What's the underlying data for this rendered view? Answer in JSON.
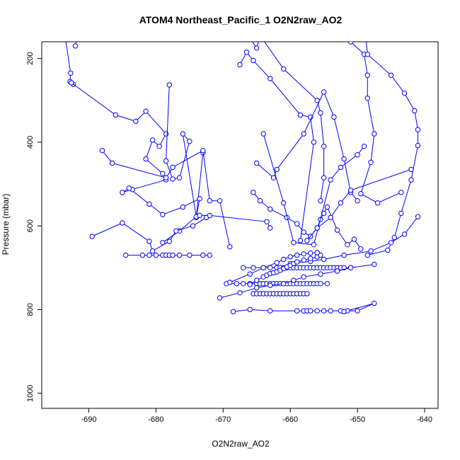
{
  "chart_data": {
    "type": "line",
    "title": "ATOM4 Northeast_Pacific_1 O2N2raw_AO2",
    "xlabel": "O2N2raw_AO2",
    "ylabel": "Pressure (mbar)",
    "xlim": [
      -697,
      -638
    ],
    "ylim": [
      1036,
      160
    ],
    "y_inverted": true,
    "grid": false,
    "legend": "none",
    "markers": "open-circle",
    "x_ticks": [
      -690,
      -680,
      -670,
      -660,
      -650,
      -640
    ],
    "y_ticks": [
      200,
      400,
      600,
      800,
      1000
    ],
    "series_color": "#0000ff",
    "series": [
      {
        "x": [
          -693.5,
          -692.7,
          -692.8,
          -692.3
        ],
        "y": [
          150,
          235,
          255,
          262
        ]
      },
      {
        "x": [
          -692,
          -691.5
        ],
        "y": [
          170,
          130
        ]
      },
      {
        "x": [
          -692.6,
          -686.0,
          -683.0,
          -681.5,
          -678.5,
          -679.5,
          -680.5,
          -681.5,
          -679.0,
          -678.5,
          -683.5,
          -685.0,
          -684.0,
          -681.0,
          -679.0,
          -676.0,
          -673.5,
          -674.0,
          -673.0
        ],
        "y": [
          258,
          335,
          350,
          326,
          380,
          410,
          395,
          440,
          475,
          490,
          513,
          520,
          510,
          548,
          573,
          555,
          535,
          580,
          425
        ]
      },
      {
        "x": [
          -678.0,
          -678.5,
          -677.5,
          -676.5,
          -675.0,
          -676.0,
          -674.0,
          -676.5,
          -679.0
        ],
        "y": [
          263,
          445,
          488,
          485,
          398,
          380,
          578,
          612,
          640
        ]
      },
      {
        "x": [
          -688.0,
          -686.5,
          -678.5,
          -677.5,
          -673.0,
          -672.0,
          -670.5,
          -669.0
        ],
        "y": [
          420,
          450,
          485,
          460,
          420,
          540,
          540,
          650
        ]
      },
      {
        "x": [
          -689.5,
          -685.0,
          -681.0,
          -680.5,
          -678.0,
          -677.0,
          -674.5,
          -672.5
        ],
        "y": [
          625,
          593,
          637,
          660,
          637,
          612,
          600,
          580
        ]
      },
      {
        "x": [
          -684.5,
          -682.0,
          -681.0,
          -680.0,
          -679.0,
          -678.5,
          -678.0,
          -677.5,
          -676.5,
          -675.0,
          -673.0,
          -672.0
        ],
        "y": [
          670,
          670,
          670,
          670,
          670,
          670,
          670,
          670,
          670,
          670,
          670,
          670
        ]
      },
      {
        "x": [
          -673.5,
          -672.0,
          -663.5,
          -663.0
        ],
        "y": [
          575,
          575,
          590,
          605
        ]
      },
      {
        "x": [
          -667.5,
          -666.5,
          -665.5,
          -663.0,
          -658.5,
          -657.0,
          -656.5,
          -658.5
        ],
        "y": [
          215,
          185,
          205,
          248,
          335,
          340,
          400,
          635
        ]
      },
      {
        "x": [
          -666.5,
          -665.0,
          -664.5,
          -661.0,
          -656.0,
          -655.5,
          -655.0,
          -655.0,
          -655.5
        ],
        "y": [
          140,
          175,
          145,
          225,
          300,
          330,
          410,
          485,
          540
        ]
      },
      {
        "x": [
          -665.0,
          -662.5,
          -662.0,
          -658.0,
          -655.0,
          -653.5,
          -652.0,
          -651.0,
          -650.0
        ],
        "y": [
          450,
          485,
          465,
          380,
          280,
          340,
          440,
          520,
          540
        ]
      },
      {
        "x": [
          -665.5,
          -664.5,
          -663.0,
          -660.5,
          -659.0,
          -658.0,
          -657.0,
          -656.0,
          -655.5,
          -655.0,
          -654.5,
          -653.0,
          -651.5,
          -650.5,
          -649.5
        ],
        "y": [
          520,
          540,
          560,
          580,
          595,
          615,
          625,
          605,
          585,
          570,
          555,
          610,
          645,
          632,
          655
        ]
      },
      {
        "x": [
          -664.0,
          -661.0,
          -659.5,
          -656.5,
          -654.0,
          -652.5,
          -650.0,
          -649.0
        ],
        "y": [
          380,
          545,
          640,
          645,
          490,
          460,
          430,
          410
        ]
      },
      {
        "x": [
          -651.0,
          -649.0,
          -648.5,
          -648.5,
          -647.5,
          -648.0,
          -649.5,
          -647.0,
          -643.5
        ],
        "y": [
          160,
          190,
          240,
          295,
          380,
          448,
          523,
          545,
          520
        ]
      },
      {
        "x": [
          -649.0,
          -648.5,
          -645.0,
          -643.0,
          -641.5,
          -641.0,
          -641.0,
          -642.0,
          -643.5,
          -644.5,
          -645.5,
          -648.5
        ],
        "y": [
          110,
          190,
          240,
          283,
          325,
          370,
          408,
          490,
          570,
          628,
          658,
          670
        ]
      },
      {
        "x": [
          -642.0,
          -651.0,
          -652.5,
          -654.0,
          -656.0,
          -657.5
        ],
        "y": [
          465,
          515,
          545,
          580,
          605,
          635
        ]
      },
      {
        "x": [
          -641.0,
          -643.0,
          -645.0,
          -648.0,
          -652.0,
          -655.0,
          -657.0,
          -660.0
        ],
        "y": [
          578,
          620,
          640,
          660,
          670,
          680,
          685,
          690
        ]
      },
      {
        "x": [
          -667.0,
          -665.5,
          -664.0,
          -663.0,
          -662.0,
          -661.5,
          -661.0,
          -660.5,
          -660.0,
          -659.5,
          -659.0,
          -658.5,
          -658.0,
          -657.5,
          -657.0,
          -656.5,
          -656.0,
          -655.5,
          -655.0,
          -654.5,
          -654.0,
          -653.5,
          -653.0,
          -652.5,
          -652.0,
          -651.0
        ],
        "y": [
          700,
          700,
          700,
          700,
          700,
          700,
          700,
          700,
          700,
          700,
          700,
          700,
          700,
          700,
          700,
          700,
          700,
          700,
          700,
          700,
          700,
          700,
          700,
          700,
          700,
          700
        ]
      },
      {
        "x": [
          -669.5,
          -668.0,
          -667.0,
          -666.0,
          -665.0,
          -664.5,
          -664.0,
          -663.5,
          -663.0,
          -662.5,
          -662.0,
          -661.5,
          -661.0,
          -660.5,
          -660.0,
          -659.5,
          -659.0,
          -658.5,
          -658.0,
          -657.5,
          -657.0,
          -656.5,
          -656.0,
          -655.5,
          -654.5
        ],
        "y": [
          738,
          738,
          738,
          738,
          738,
          738,
          738,
          738,
          738,
          738,
          738,
          738,
          738,
          738,
          738,
          738,
          738,
          738,
          738,
          738,
          738,
          738,
          738,
          738,
          738
        ]
      },
      {
        "x": [
          -665.5,
          -665.0,
          -664.5,
          -664.0,
          -663.5,
          -663.0,
          -662.5,
          -662.0,
          -661.5,
          -661.0,
          -660.5,
          -660.0,
          -659.5,
          -659.0,
          -658.5,
          -658.0,
          -657.5
        ],
        "y": [
          762,
          762,
          762,
          762,
          762,
          762,
          762,
          762,
          762,
          762,
          762,
          762,
          762,
          762,
          762,
          762,
          762
        ]
      },
      {
        "x": [
          -668.5,
          -666.0,
          -663.0,
          -659.0,
          -658.0,
          -657.5,
          -657.0,
          -656.0,
          -655.0,
          -654.0,
          -652.5,
          -651.5,
          -650.0,
          -647.5,
          -652.0
        ],
        "y": [
          805,
          800,
          803,
          803,
          803,
          803,
          803,
          803,
          803,
          803,
          803,
          803,
          803,
          785,
          805
        ]
      },
      {
        "x": [
          -670.5,
          -667.5,
          -665.0,
          -663.0,
          -661.0,
          -659.5,
          -658.0,
          -655.5,
          -653.0,
          -651.0,
          -647.5
        ],
        "y": [
          772,
          760,
          748,
          742,
          738,
          730,
          722,
          715,
          708,
          700,
          692
        ]
      },
      {
        "x": [
          -666.0,
          -665.0,
          -664.0,
          -663.5,
          -663.0,
          -662.5,
          -662.0,
          -661.5,
          -661.0,
          -660.5,
          -660.0,
          -659.5,
          -659.0,
          -658.0,
          -657.0,
          -656.0,
          -655.5
        ],
        "y": [
          740,
          730,
          722,
          718,
          714,
          712,
          710,
          706,
          702,
          698,
          694,
          690,
          686,
          682,
          678,
          674,
          670
        ]
      },
      {
        "x": [
          -669.0,
          -666.0,
          -664.0,
          -662.0,
          -661.0,
          -660.0,
          -659.0,
          -658.0,
          -657.0,
          -656.0
        ],
        "y": [
          735,
          715,
          700,
          688,
          680,
          674,
          670,
          667,
          665,
          664
        ]
      }
    ]
  }
}
